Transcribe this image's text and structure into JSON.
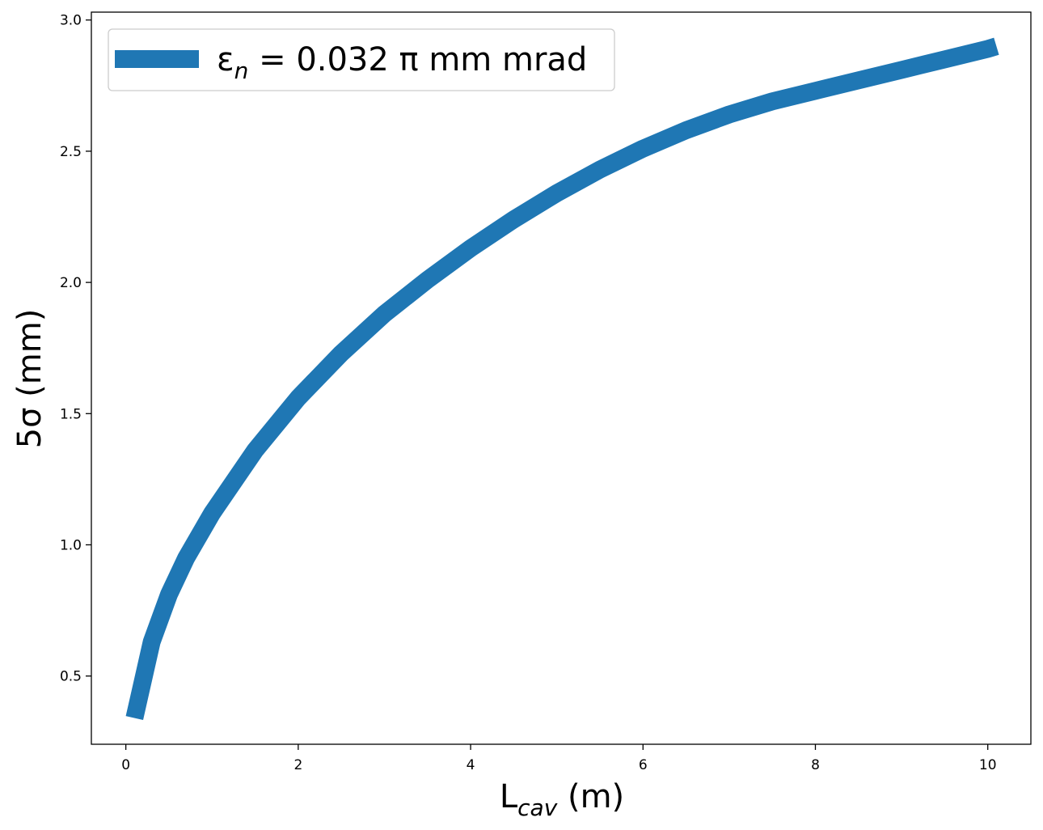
{
  "chart_data": {
    "type": "line",
    "title": "",
    "xlabel": {
      "main": "L",
      "sub": "cav",
      "unit": " (m)"
    },
    "ylabel": "5σ (mm)",
    "xlim": [
      -0.4,
      10.5
    ],
    "ylim": [
      0.24,
      3.03
    ],
    "xticks": [
      0,
      2,
      4,
      6,
      8,
      10
    ],
    "yticks": [
      0.5,
      1.0,
      1.5,
      2.0,
      2.5,
      3.0
    ],
    "xtick_labels": [
      "0",
      "2",
      "4",
      "6",
      "8",
      "10"
    ],
    "ytick_labels": [
      "0.5",
      "1.0",
      "1.5",
      "2.0",
      "2.5",
      "3.0"
    ],
    "grid": false,
    "legend": {
      "placement": "top-left"
    },
    "series": [
      {
        "name": {
          "main": "ε",
          "sub": "n",
          "rest": " = 0.032 π mm mrad"
        },
        "color": "#1f77b4",
        "x": [
          0.1,
          0.3,
          0.5,
          0.7,
          1.0,
          1.5,
          2.0,
          2.5,
          3.0,
          3.5,
          4.0,
          4.5,
          5.0,
          5.5,
          6.0,
          6.5,
          7.0,
          7.5,
          8.0,
          8.5,
          9.0,
          9.5,
          10.0,
          10.1
        ],
        "y": [
          0.34,
          0.63,
          0.81,
          0.95,
          1.12,
          1.36,
          1.56,
          1.73,
          1.88,
          2.01,
          2.13,
          2.24,
          2.34,
          2.43,
          2.51,
          2.58,
          2.64,
          2.69,
          2.73,
          2.77,
          2.81,
          2.85,
          2.89,
          2.9
        ]
      }
    ]
  }
}
